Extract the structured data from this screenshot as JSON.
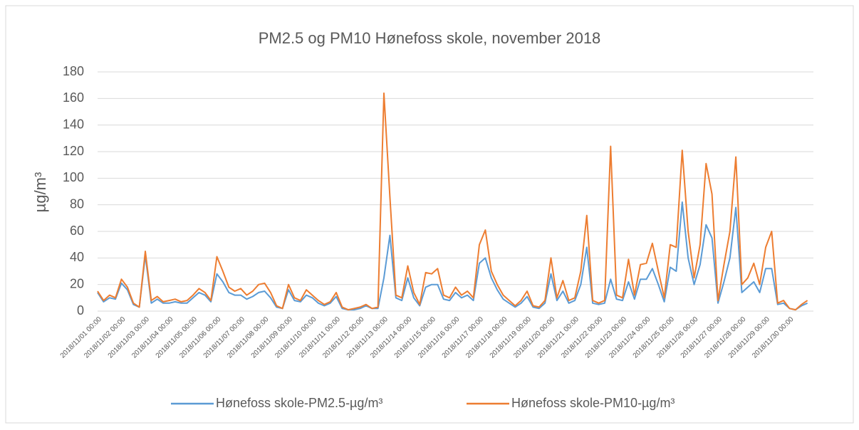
{
  "chart_data": {
    "type": "line",
    "title": "PM2.5 og PM10 Hønefoss skole, november 2018",
    "y_label": "µg/m³",
    "categories": [
      "2018/11/01 00:00",
      null,
      null,
      null,
      "2018/11/02 00:00",
      null,
      null,
      null,
      "2018/11/03 00:00",
      null,
      null,
      null,
      "2018/11/04 00:00",
      null,
      null,
      null,
      "2018/11/05 00:00",
      null,
      null,
      null,
      "2018/11/06 00:00",
      null,
      null,
      null,
      "2018/11/07 00:00",
      null,
      null,
      null,
      "2018/11/08 00:00",
      null,
      null,
      null,
      "2018/11/09 00:00",
      null,
      null,
      null,
      "2018/11/10 00:00",
      null,
      null,
      null,
      "2018/11/11 00:00",
      null,
      null,
      null,
      "2018/11/12 00:00",
      null,
      null,
      null,
      "2018/11/13 00:00",
      null,
      null,
      null,
      "2018/11/14 00:00",
      null,
      null,
      null,
      "2018/11/15 00:00",
      null,
      null,
      null,
      "2018/11/16 00:00",
      null,
      null,
      null,
      "2018/11/17 00:00",
      null,
      null,
      null,
      "2018/11/18 00:00",
      null,
      null,
      null,
      "2018/11/19 00:00",
      null,
      null,
      null,
      "2018/11/20 00:00",
      null,
      null,
      null,
      "2018/11/21 00:00",
      null,
      null,
      null,
      "2018/11/22 00:00",
      null,
      null,
      null,
      "2018/11/23 00:00",
      null,
      null,
      null,
      "2018/11/24 00:00",
      null,
      null,
      null,
      "2018/11/25 00:00",
      null,
      null,
      null,
      "2018/11/26 00:00",
      null,
      null,
      null,
      "2018/11/27 00:00",
      null,
      null,
      null,
      "2018/11/28 00:00",
      null,
      null,
      null,
      "2018/11/29 00:00",
      null,
      null,
      null,
      "2018/11/30 00:00",
      null,
      null,
      null
    ],
    "series": [
      {
        "name": "Hønefoss skole-PM2.5-µg/m³",
        "color": "#5b9bd5",
        "values": [
          14,
          7,
          10,
          9,
          21,
          16,
          5,
          3,
          42,
          6,
          9,
          6,
          6,
          7,
          6,
          6,
          10,
          14,
          12,
          7,
          28,
          22,
          14,
          12,
          12,
          9,
          11,
          14,
          15,
          10,
          3,
          2,
          16,
          8,
          7,
          12,
          10,
          6,
          4,
          6,
          11,
          2,
          1,
          1,
          2,
          4,
          2,
          2,
          25,
          57,
          10,
          8,
          25,
          10,
          4,
          18,
          20,
          20,
          9,
          8,
          14,
          10,
          12,
          8,
          36,
          40,
          25,
          16,
          9,
          6,
          3,
          6,
          11,
          3,
          2,
          6,
          28,
          8,
          15,
          6,
          8,
          20,
          48,
          6,
          5,
          6,
          24,
          9,
          8,
          22,
          9,
          24,
          24,
          32,
          20,
          7,
          33,
          30,
          82,
          40,
          20,
          35,
          65,
          55,
          6,
          22,
          40,
          78,
          14,
          18,
          22,
          14,
          32,
          32,
          5,
          6,
          2,
          1,
          4,
          6
        ]
      },
      {
        "name": "Hønefoss skole-PM10-µg/m³",
        "color": "#ed7d31",
        "values": [
          15,
          8,
          12,
          10,
          24,
          18,
          6,
          3,
          45,
          8,
          11,
          7,
          8,
          9,
          7,
          8,
          12,
          17,
          14,
          8,
          41,
          30,
          18,
          15,
          17,
          12,
          15,
          20,
          21,
          14,
          4,
          2,
          20,
          10,
          8,
          16,
          12,
          8,
          5,
          7,
          14,
          3,
          1,
          2,
          3,
          5,
          2,
          3,
          164,
          86,
          12,
          10,
          34,
          14,
          5,
          29,
          28,
          32,
          12,
          10,
          18,
          12,
          15,
          10,
          50,
          61,
          30,
          20,
          12,
          8,
          4,
          8,
          15,
          4,
          3,
          8,
          40,
          10,
          23,
          8,
          10,
          30,
          72,
          8,
          6,
          8,
          124,
          12,
          10,
          39,
          12,
          35,
          36,
          51,
          30,
          10,
          50,
          48,
          121,
          60,
          25,
          50,
          111,
          88,
          8,
          35,
          60,
          116,
          20,
          25,
          36,
          20,
          48,
          60,
          6,
          8,
          2,
          1,
          5,
          8
        ]
      }
    ],
    "ylim": [
      0,
      180
    ],
    "yticks": [
      0,
      20,
      40,
      60,
      80,
      100,
      120,
      140,
      160,
      180
    ],
    "grid": true,
    "legend": "bottom"
  }
}
